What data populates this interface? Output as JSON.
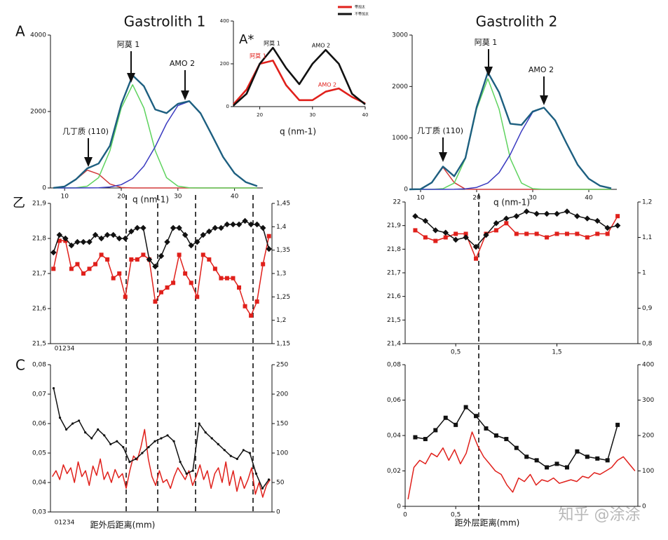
{
  "panel_labels": [
    "A",
    "乙",
    "C"
  ],
  "watermark": "知乎 @涂涂",
  "chart_data": [
    {
      "type": "line",
      "title": "Gastrolith 1",
      "x_label": "q (nm-1)",
      "x": [
        8,
        10,
        12,
        14,
        16,
        18,
        20,
        22,
        24,
        26,
        28,
        30,
        32,
        34,
        36,
        38,
        40,
        42,
        44
      ],
      "xlim": [
        7.5,
        45
      ],
      "xticks": [
        10,
        20,
        30,
        40
      ],
      "ylim": [
        0,
        4000
      ],
      "yticks": [
        0,
        2000,
        4000
      ],
      "annotations": [
        {
          "text": "几丁质 (110)",
          "color": "#111"
        },
        {
          "text": "阿莫 1",
          "color": "#111"
        },
        {
          "text": "AMO 2",
          "color": "#111"
        }
      ],
      "series": [
        {
          "color": "#d23a3a",
          "values": [
            2,
            38,
            220,
            466,
            362,
            104,
            11,
            0,
            0,
            0,
            0,
            0,
            0,
            0,
            0,
            0,
            0,
            0,
            0
          ]
        },
        {
          "color": "#5fd35f",
          "values": [
            0,
            0,
            5,
            45,
            270,
            973,
            2092,
            2700,
            2092,
            973,
            270,
            45,
            5,
            0,
            0,
            0,
            0,
            0,
            0
          ]
        },
        {
          "color": "#3a3ac0",
          "values": [
            0,
            0,
            0,
            1,
            6,
            25,
            87,
            245,
            570,
            1080,
            1688,
            2156,
            2266,
            1954,
            1383,
            805,
            384,
            150,
            48
          ]
        },
        {
          "color": "#1d5f80",
          "values": [
            2,
            38,
            225,
            512,
            638,
            1102,
            2190,
            2945,
            2662,
            2053,
            1958,
            2201,
            2271,
            1954,
            1383,
            805,
            384,
            150,
            48
          ]
        }
      ]
    },
    {
      "type": "line",
      "panel": "A*",
      "x_label": "q (nm-1)",
      "legend": "upper right",
      "x": [
        15,
        17.5,
        20,
        22.5,
        25,
        27.5,
        30,
        32.5,
        35,
        37.5,
        40
      ],
      "xlim": [
        15,
        40
      ],
      "xticks": [
        20,
        30,
        40
      ],
      "ylim": [
        0,
        400
      ],
      "yticks": [
        0,
        200,
        400
      ],
      "annotations": [
        {
          "text": "阿莫 1",
          "color": "#111"
        },
        {
          "text": "AMO 2",
          "color": "#111"
        },
        {
          "text": "阿莫 1",
          "color": "#e0201b"
        },
        {
          "text": "AMO 2",
          "color": "#e0201b"
        }
      ],
      "series": [
        {
          "name": "带加太",
          "color": "#e0201b",
          "values": [
            10,
            80,
            200,
            215,
            100,
            30,
            30,
            70,
            85,
            45,
            15
          ]
        },
        {
          "name": "不带加太",
          "color": "#111111",
          "values": [
            5,
            60,
            200,
            275,
            180,
            105,
            200,
            265,
            200,
            60,
            10
          ]
        }
      ]
    },
    {
      "type": "line",
      "title": "Gastrolith 2",
      "x_label": "q (nm-1)",
      "x": [
        8,
        10,
        12,
        14,
        16,
        18,
        20,
        22,
        24,
        26,
        28,
        30,
        32,
        34,
        36,
        38,
        40,
        42,
        44
      ],
      "xlim": [
        8.5,
        45
      ],
      "xticks": [
        10,
        20,
        30,
        40
      ],
      "ylim": [
        0,
        3000
      ],
      "yticks": [
        0,
        1000,
        2000,
        3000
      ],
      "annotations": [
        {
          "text": "几丁质 (110)",
          "color": "#111"
        },
        {
          "text": "阿莫 1",
          "color": "#111"
        },
        {
          "text": "AMO 2",
          "color": "#111"
        }
      ],
      "series": [
        {
          "color": "#d23a3a",
          "values": [
            0,
            4,
            132,
            430,
            132,
            4,
            0,
            0,
            0,
            0,
            0,
            0,
            0,
            0,
            0,
            0,
            0,
            0,
            0
          ]
        },
        {
          "color": "#5fd35f",
          "values": [
            0,
            0,
            0,
            13,
            121,
            598,
            1561,
            2150,
            1561,
            598,
            121,
            13,
            0,
            0,
            0,
            0,
            0,
            0,
            0
          ]
        },
        {
          "color": "#3a3ac0",
          "values": [
            0,
            0,
            0,
            0,
            2,
            9,
            38,
            124,
            325,
            679,
            1131,
            1501,
            1589,
            1341,
            901,
            482,
            206,
            70,
            19
          ]
        },
        {
          "color": "#1d5f80",
          "values": [
            0,
            4,
            132,
            443,
            255,
            611,
            1599,
            2274,
            1886,
            1277,
            1252,
            1514,
            1589,
            1341,
            901,
            482,
            206,
            70,
            19
          ]
        }
      ]
    },
    {
      "type": "line",
      "x_note": "01234",
      "ylim": [
        21.5,
        21.9
      ],
      "yticks": [
        {
          "value": 21.5,
          "label": "21,5"
        },
        {
          "value": 21.6,
          "label": "21,6"
        },
        {
          "value": 21.7,
          "label": "21,7"
        },
        {
          "value": 21.8,
          "label": "21,8"
        },
        {
          "value": 21.9,
          "label": "21,9"
        }
      ],
      "y2lim": [
        1.15,
        1.45
      ],
      "y2ticks": [
        {
          "value": 1.15,
          "label": "1,15"
        },
        {
          "value": 1.2,
          "label": "1,2"
        },
        {
          "value": 1.25,
          "label": "1,25"
        },
        {
          "value": 1.3,
          "label": "1,3"
        },
        {
          "value": 1.35,
          "label": "1,35"
        },
        {
          "value": 1.4,
          "label": "1,4"
        },
        {
          "value": 1.45,
          "label": "1,45"
        }
      ],
      "series": [
        {
          "color": "#e0201b",
          "axis": "y2",
          "marker": "square",
          "values": [
            1.31,
            1.37,
            1.37,
            1.31,
            1.32,
            1.3,
            1.31,
            1.32,
            1.34,
            1.33,
            1.29,
            1.3,
            1.25,
            1.33,
            1.33,
            1.34,
            1.33,
            1.24,
            1.26,
            1.27,
            1.28,
            1.34,
            1.3,
            1.28,
            1.25,
            1.34,
            1.33,
            1.31,
            1.29,
            1.29,
            1.29,
            1.27,
            1.23,
            1.21,
            1.24,
            1.32,
            1.38
          ]
        },
        {
          "color": "#111111",
          "marker": "diamond",
          "values": [
            21.76,
            21.81,
            21.8,
            21.78,
            21.79,
            21.79,
            21.79,
            21.81,
            21.8,
            21.81,
            21.81,
            21.8,
            21.8,
            21.82,
            21.83,
            21.83,
            21.74,
            21.72,
            21.75,
            21.79,
            21.83,
            21.83,
            21.81,
            21.78,
            21.79,
            21.81,
            21.82,
            21.83,
            21.83,
            21.84,
            21.84,
            21.84,
            21.85,
            21.84,
            21.84,
            21.83,
            21.77
          ]
        }
      ]
    },
    {
      "type": "line",
      "x": [
        0.1,
        0.2,
        0.3,
        0.4,
        0.5,
        0.6,
        0.7,
        0.8,
        0.9,
        1.0,
        1.1,
        1.2,
        1.3,
        1.4,
        1.5,
        1.6,
        1.7,
        1.8,
        1.9,
        2.0,
        2.1
      ],
      "xlim": [
        0,
        2.3
      ],
      "xticks": [
        {
          "value": 0.5,
          "label": "0,5"
        },
        {
          "value": 1.5,
          "label": "1,5"
        }
      ],
      "ylim": [
        21.4,
        22
      ],
      "yticks": [
        {
          "value": 21.4,
          "label": "21,4"
        },
        {
          "value": 21.5,
          "label": "21,5"
        },
        {
          "value": 21.6,
          "label": "21,6"
        },
        {
          "value": 21.7,
          "label": "21,7"
        },
        {
          "value": 21.8,
          "label": "21,8"
        },
        {
          "value": 21.9,
          "label": "21,9"
        },
        22
      ],
      "y2lim": [
        0.8,
        1.2
      ],
      "y2ticks": [
        {
          "value": 0.8,
          "label": "0,8"
        },
        {
          "value": 0.9,
          "label": "0,9"
        },
        1,
        {
          "value": 1.1,
          "label": "1,1"
        },
        {
          "value": 1.2,
          "label": "1,2"
        }
      ],
      "series": [
        {
          "color": "#e0201b",
          "axis": "y2",
          "marker": "square",
          "values": [
            1.12,
            1.1,
            1.09,
            1.1,
            1.11,
            1.11,
            1.04,
            1.11,
            1.12,
            1.14,
            1.11,
            1.11,
            1.11,
            1.1,
            1.11,
            1.11,
            1.11,
            1.1,
            1.11,
            1.11,
            1.16
          ]
        },
        {
          "color": "#111111",
          "marker": "diamond",
          "values": [
            21.94,
            21.92,
            21.88,
            21.87,
            21.84,
            21.85,
            21.81,
            21.86,
            21.91,
            21.93,
            21.94,
            21.96,
            21.95,
            21.95,
            21.95,
            21.96,
            21.94,
            21.93,
            21.92,
            21.89,
            21.9
          ]
        }
      ]
    },
    {
      "type": "line",
      "x_label": "距外后距离(mm)",
      "x_note": "01234",
      "ylim": [
        0.03,
        0.08
      ],
      "yticks": [
        {
          "value": 0.03,
          "label": "0,03"
        },
        {
          "value": 0.04,
          "label": "0,04"
        },
        {
          "value": 0.05,
          "label": "0,05"
        },
        {
          "value": 0.06,
          "label": "0,06"
        },
        {
          "value": 0.07,
          "label": "0,07"
        },
        {
          "value": 0.08,
          "label": "0,08"
        }
      ],
      "y2lim": [
        0,
        250
      ],
      "y2ticks": [
        0,
        50,
        100,
        150,
        200,
        250
      ],
      "series": [
        {
          "color": "#e0201b",
          "axis": "y2",
          "marker": "none",
          "values": [
            60,
            70,
            55,
            80,
            65,
            75,
            50,
            85,
            60,
            70,
            45,
            78,
            62,
            90,
            55,
            68,
            50,
            72,
            58,
            65,
            40,
            70,
            95,
            88,
            110,
            140,
            90,
            60,
            45,
            70,
            50,
            55,
            40,
            60,
            75,
            65,
            55,
            70,
            45,
            60,
            80,
            55,
            70,
            40,
            65,
            75,
            50,
            85,
            45,
            70,
            35,
            60,
            40,
            55,
            75,
            30,
            50,
            25,
            45,
            55
          ]
        },
        {
          "color": "#111111",
          "marker": "dot",
          "values": [
            0.072,
            0.062,
            0.058,
            0.06,
            0.061,
            0.057,
            0.055,
            0.058,
            0.056,
            0.053,
            0.054,
            0.052,
            0.047,
            0.048,
            0.05,
            0.052,
            0.054,
            0.055,
            0.056,
            0.054,
            0.047,
            0.043,
            0.044,
            0.06,
            0.057,
            0.055,
            0.053,
            0.051,
            0.049,
            0.048,
            0.051,
            0.05,
            0.043,
            0.038,
            0.041
          ]
        }
      ]
    },
    {
      "type": "line",
      "x_label": "距外层距离(mm)",
      "xlim": [
        0,
        2.3
      ],
      "xticks": [
        0,
        {
          "value": 0.5,
          "label": "0,5"
        }
      ],
      "ylim": [
        0,
        0.08
      ],
      "yticks": [
        0,
        {
          "value": 0.02,
          "label": "0,02"
        },
        {
          "value": 0.04,
          "label": "0,04"
        },
        {
          "value": 0.06,
          "label": "0,06"
        },
        {
          "value": 0.08,
          "label": "0,08"
        }
      ],
      "y2lim": [
        0,
        400
      ],
      "y2ticks": [
        0,
        100,
        200,
        300,
        400
      ],
      "series": [
        {
          "color": "#e0201b",
          "axis": "y2",
          "marker": "none",
          "values": [
            20,
            110,
            130,
            120,
            150,
            140,
            165,
            130,
            160,
            120,
            150,
            210,
            170,
            140,
            120,
            100,
            90,
            60,
            40,
            80,
            70,
            90,
            60,
            75,
            70,
            80,
            65,
            70,
            75,
            70,
            85,
            80,
            95,
            90,
            100,
            110,
            130,
            140,
            120,
            100
          ]
        },
        {
          "color": "#111111",
          "marker": "square",
          "x": [
            0.1,
            0.2,
            0.3,
            0.4,
            0.5,
            0.6,
            0.7,
            0.8,
            0.9,
            1.0,
            1.1,
            1.2,
            1.3,
            1.4,
            1.5,
            1.6,
            1.7,
            1.8,
            1.9,
            2.0,
            2.1
          ],
          "values": [
            0.039,
            0.038,
            0.043,
            0.05,
            0.046,
            0.056,
            0.051,
            0.044,
            0.04,
            0.038,
            0.033,
            0.028,
            0.026,
            0.022,
            0.024,
            0.022,
            0.031,
            0.028,
            0.027,
            0.026,
            0.046
          ]
        }
      ]
    }
  ]
}
